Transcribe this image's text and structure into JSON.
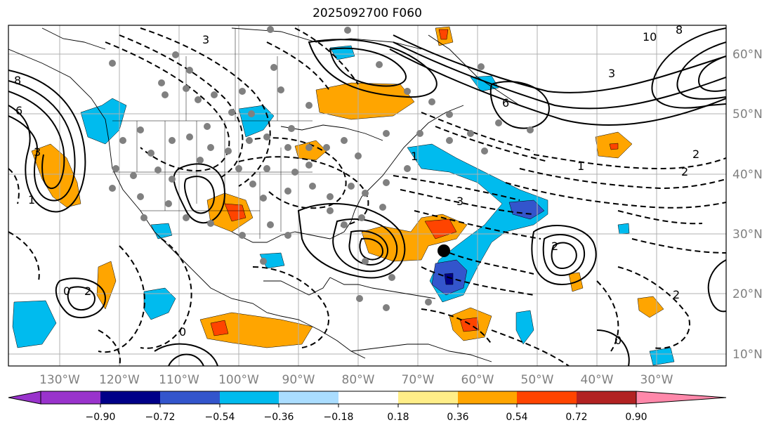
{
  "title": "2025092700 F060",
  "longitude_labels": [
    "130°W",
    "120°W",
    "110°W",
    "100°W",
    "90°W",
    "80°W",
    "70°W",
    "60°W",
    "50°W",
    "40°W",
    "30°W"
  ],
  "latitude_labels": [
    "60°N",
    "50°N",
    "40°N",
    "30°N",
    "20°N",
    "10°N"
  ],
  "colorbar": {
    "tick_labels": [
      "−0.90",
      "−0.72",
      "−0.54",
      "−0.36",
      "−0.18",
      "0.18",
      "0.36",
      "0.54",
      "0.72",
      "0.90"
    ],
    "colors": {
      "under": "#9933cc",
      "bins": [
        "#9933cc",
        "#000088",
        "#3355cc",
        "#00bbee",
        "#aaddff",
        "#ffffff",
        "#ffee88",
        "#ffa500",
        "#ff4400",
        "#b22222"
      ],
      "over": "#ff88aa"
    }
  },
  "contour_labels": [
    {
      "text": "6"
    },
    {
      "text": "8"
    },
    {
      "text": "3"
    },
    {
      "text": "1"
    },
    {
      "text": "0"
    },
    {
      "text": "2"
    },
    {
      "text": "3"
    },
    {
      "text": "10"
    },
    {
      "text": "8"
    },
    {
      "text": "6"
    },
    {
      "text": "3"
    },
    {
      "text": "2"
    },
    {
      "text": "1"
    },
    {
      "text": "2"
    },
    {
      "text": "3"
    },
    {
      "text": "1"
    },
    {
      "text": "2"
    },
    {
      "text": "0"
    },
    {
      "text": "2"
    },
    {
      "text": "0"
    }
  ],
  "colors": {
    "grid": "#b0b0b0",
    "axis_label": "#808080",
    "coastline": "#000000"
  }
}
